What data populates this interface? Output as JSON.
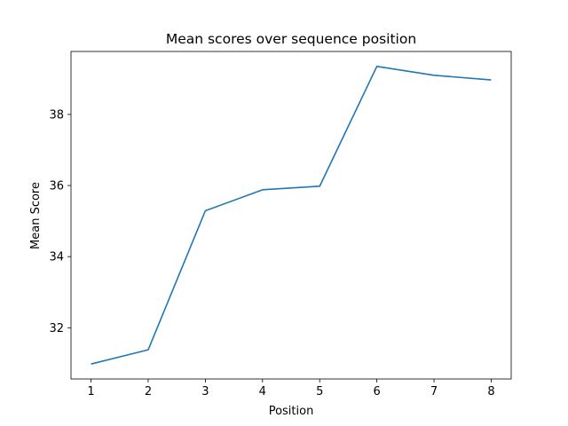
{
  "chart_data": {
    "type": "line",
    "title": "Mean scores over sequence position",
    "xlabel": "Position",
    "ylabel": "Mean Score",
    "x": [
      1,
      2,
      3,
      4,
      5,
      6,
      7,
      8
    ],
    "series": [
      {
        "values": [
          30.98,
          31.38,
          35.29,
          35.88,
          35.98,
          39.35,
          39.1,
          38.97
        ],
        "color": "#1f77b4"
      }
    ],
    "xticks": [
      1,
      2,
      3,
      4,
      5,
      6,
      7,
      8
    ],
    "yticks": [
      32,
      34,
      36,
      38
    ],
    "xlim": [
      0.65,
      8.35
    ],
    "ylim": [
      30.56,
      39.77
    ],
    "grid": false,
    "legend": "none"
  }
}
